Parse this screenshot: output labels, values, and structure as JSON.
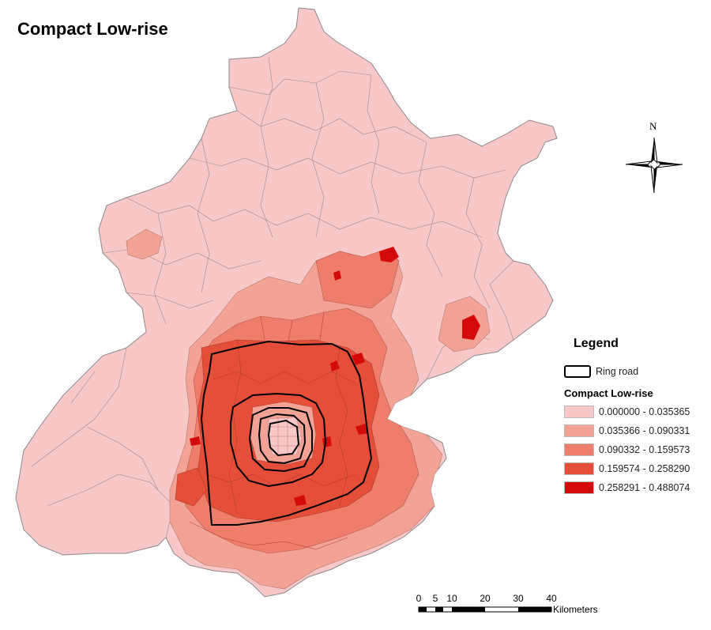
{
  "map": {
    "title": "Compact Low-rise",
    "north_label": "N",
    "legend": {
      "heading": "Legend",
      "ring_label": "Ring road",
      "class_title": "Compact Low-rise",
      "classes": [
        {
          "label": "0.000000 - 0.035365",
          "color": "#f8c7c7"
        },
        {
          "label": "0.035366 - 0.090331",
          "color": "#f3a296"
        },
        {
          "label": "0.090332 - 0.159573",
          "color": "#ef7d6b"
        },
        {
          "label": "0.159574 - 0.258290",
          "color": "#e54e39"
        },
        {
          "label": "0.258291 - 0.488074",
          "color": "#d40a0a"
        }
      ]
    },
    "scale": {
      "ticks": [
        "0",
        "5",
        "10",
        "20",
        "30",
        "40"
      ],
      "unit": "Kilometers"
    }
  }
}
